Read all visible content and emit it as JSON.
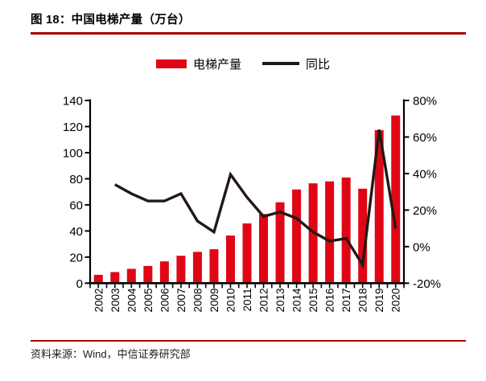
{
  "figure": {
    "title": "图 18：中国电梯产量（万台）",
    "source": "资料来源：Wind，中信证券研究部"
  },
  "legend": {
    "bars_label": "电梯产量",
    "line_label": "同比"
  },
  "colors": {
    "bar": "#e00615",
    "line": "#231815",
    "rule": "#a80000",
    "axis": "#000000"
  },
  "chart_data": {
    "type": "bar+line",
    "title": "中国电梯产量（万台）",
    "categories": [
      "2002",
      "2003",
      "2004",
      "2005",
      "2006",
      "2007",
      "2008",
      "2009",
      "2010",
      "2011",
      "2012",
      "2013",
      "2014",
      "2015",
      "2016",
      "2017",
      "2018",
      "2019",
      "2020"
    ],
    "series": [
      {
        "name": "电梯产量",
        "type": "bar",
        "axis": "left",
        "values": [
          6.4,
          8.5,
          11.0,
          13.2,
          16.7,
          21.0,
          24.0,
          26.0,
          36.5,
          45.8,
          53.0,
          62.0,
          71.8,
          76.5,
          78.0,
          81.0,
          72.4,
          117.3,
          128.5
        ]
      },
      {
        "name": "同比",
        "type": "line",
        "axis": "right",
        "values": [
          null,
          34,
          29,
          25,
          25,
          29,
          14,
          8,
          39.5,
          27,
          16.5,
          19,
          15.5,
          8,
          3,
          4.5,
          -10,
          64,
          10
        ]
      }
    ],
    "left_axis": {
      "min": 0,
      "max": 140,
      "step": 20,
      "tick_labels": [
        "0",
        "20",
        "40",
        "60",
        "80",
        "100",
        "120",
        "140"
      ]
    },
    "right_axis": {
      "min": -20,
      "max": 80,
      "step": 20,
      "tick_labels": [
        "-20%",
        "0%",
        "20%",
        "40%",
        "60%",
        "80%"
      ]
    },
    "legend_position": "top",
    "grid": false
  }
}
